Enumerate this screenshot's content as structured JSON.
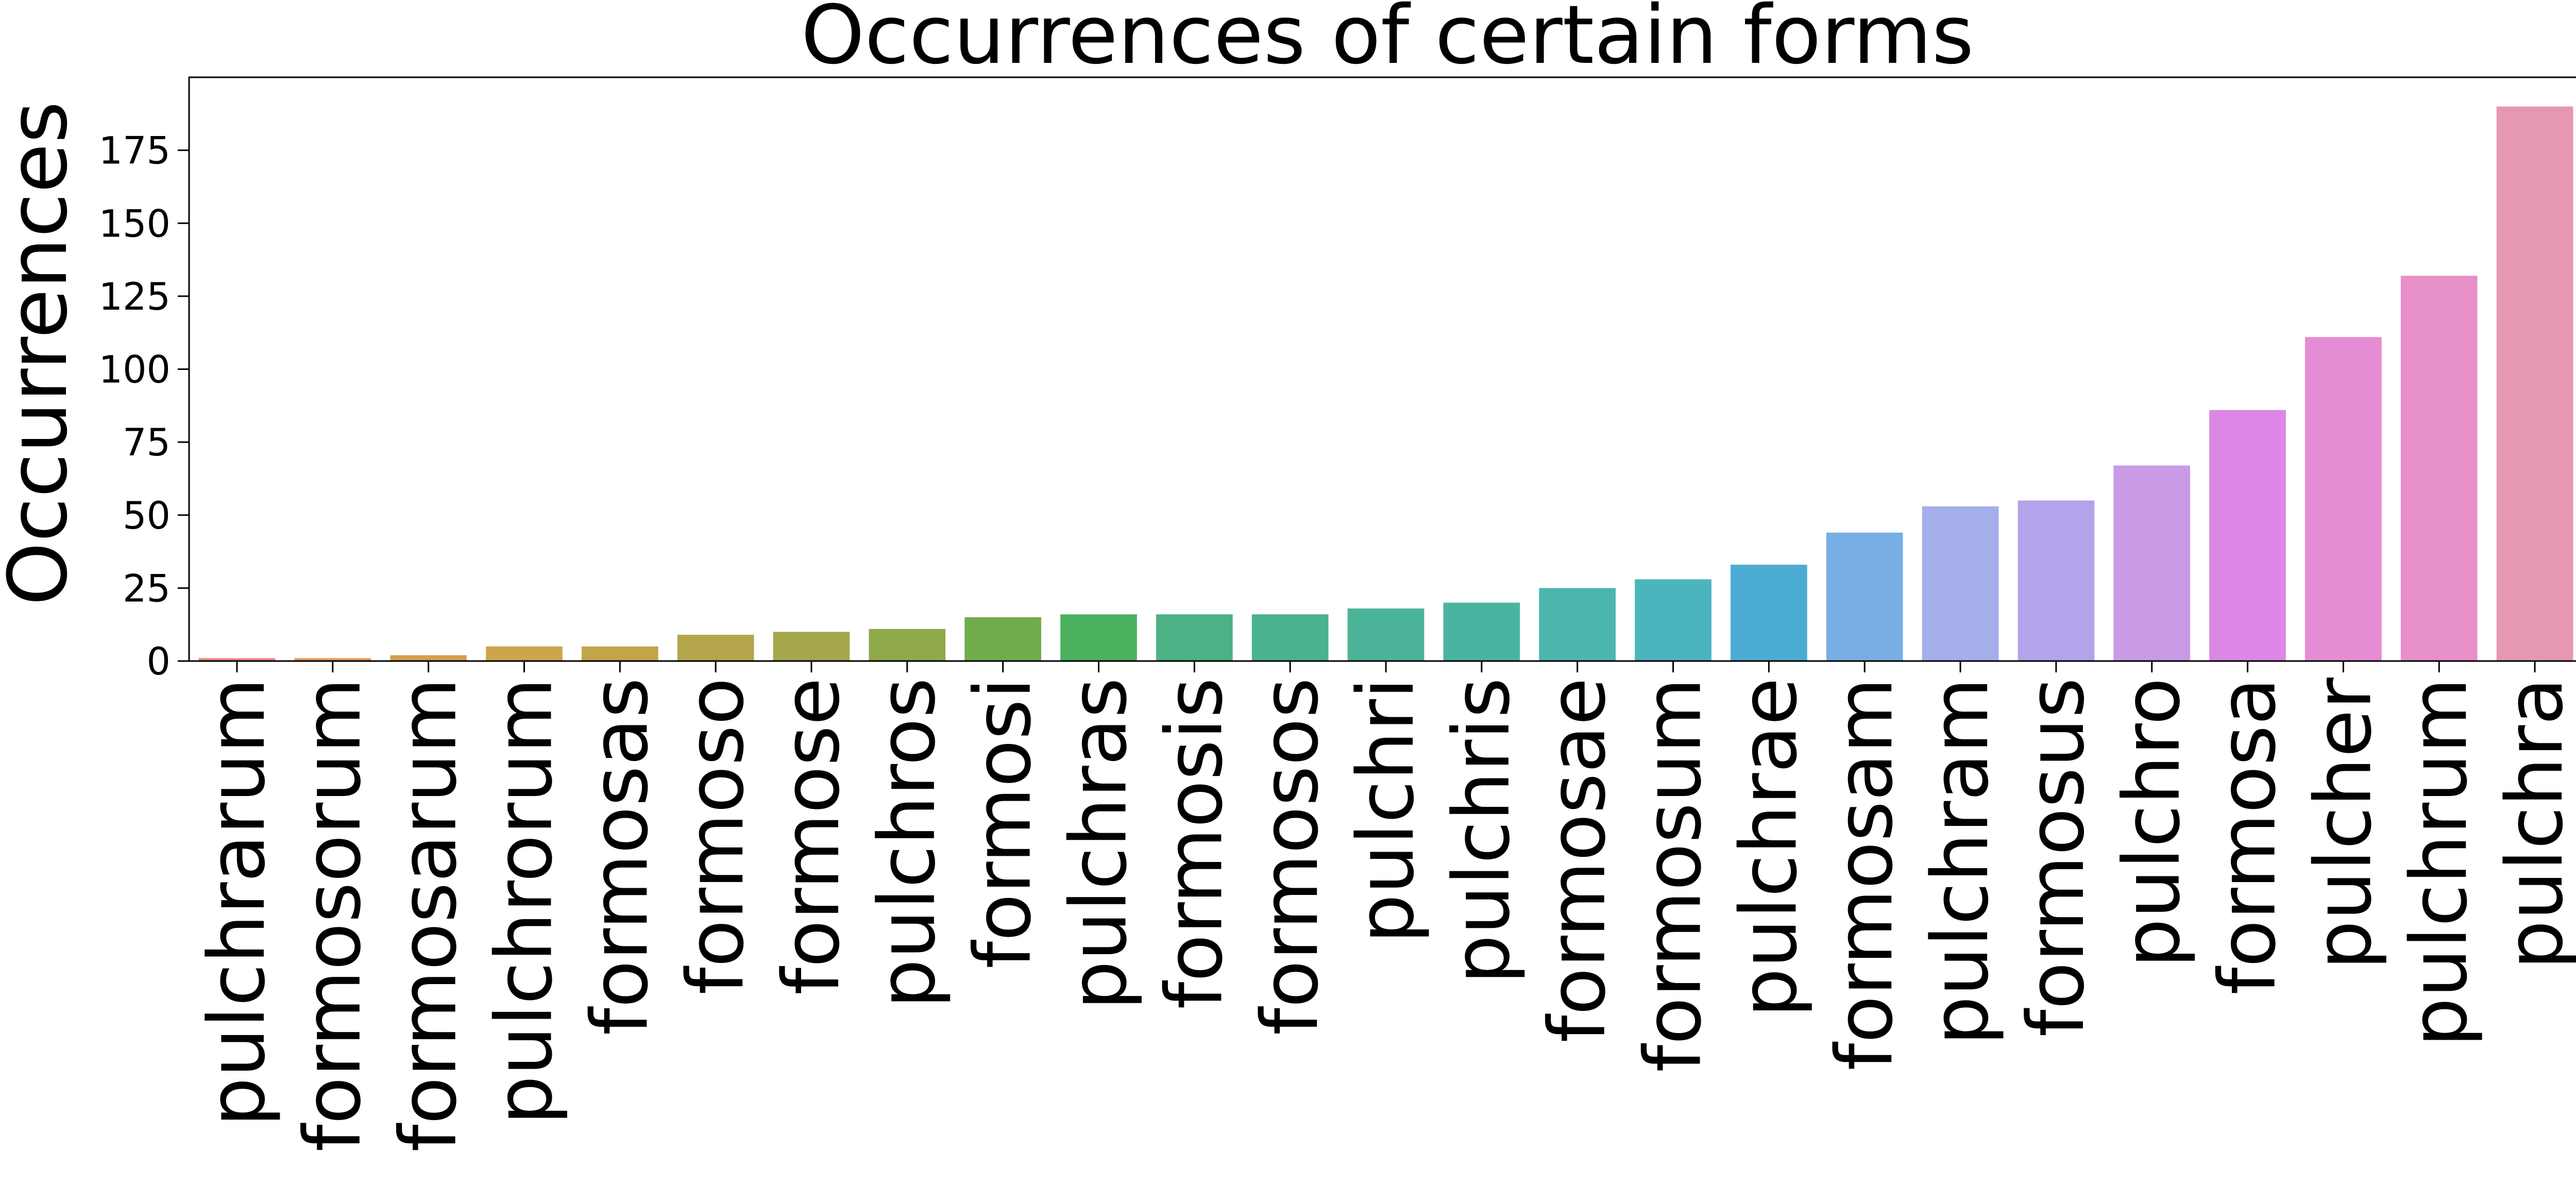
{
  "chart_data": {
    "type": "bar",
    "title": "Occurrences of certain forms",
    "xlabel": "",
    "ylabel": "Occurrences",
    "ylim": [
      0,
      200
    ],
    "yticks": [
      0,
      25,
      50,
      75,
      100,
      125,
      150,
      175
    ],
    "grid": false,
    "categories": [
      "pulchrarum",
      "formosorum",
      "formosarum",
      "pulchrorum",
      "formosas",
      "formoso",
      "formose",
      "pulchros",
      "formosi",
      "pulchras",
      "formosis",
      "formosos",
      "pulchri",
      "pulchris",
      "formosae",
      "formosum",
      "pulchrae",
      "formosam",
      "pulchram",
      "formosus",
      "pulchro",
      "formosa",
      "pulcher",
      "pulchrum",
      "pulchra"
    ],
    "values": [
      1,
      1,
      2,
      5,
      5,
      9,
      10,
      11,
      15,
      16,
      16,
      16,
      18,
      20,
      25,
      28,
      33,
      44,
      53,
      55,
      67,
      86,
      111,
      132,
      190
    ],
    "colors": [
      "#f0867e",
      "#e69b61",
      "#d5a04d",
      "#cea54c",
      "#c1a549",
      "#b5a54a",
      "#a4a74a",
      "#8fa94b",
      "#6fad4c",
      "#4bb15f",
      "#4db186",
      "#4bb28f",
      "#4bb397",
      "#4bb4a1",
      "#4cb5ae",
      "#4cb4bd",
      "#4cabd3",
      "#77aee5",
      "#a4aeeb",
      "#b4a2ea",
      "#c99ae6",
      "#dc87e5",
      "#e68cd4",
      "#e790c7",
      "#e697b4"
    ]
  }
}
